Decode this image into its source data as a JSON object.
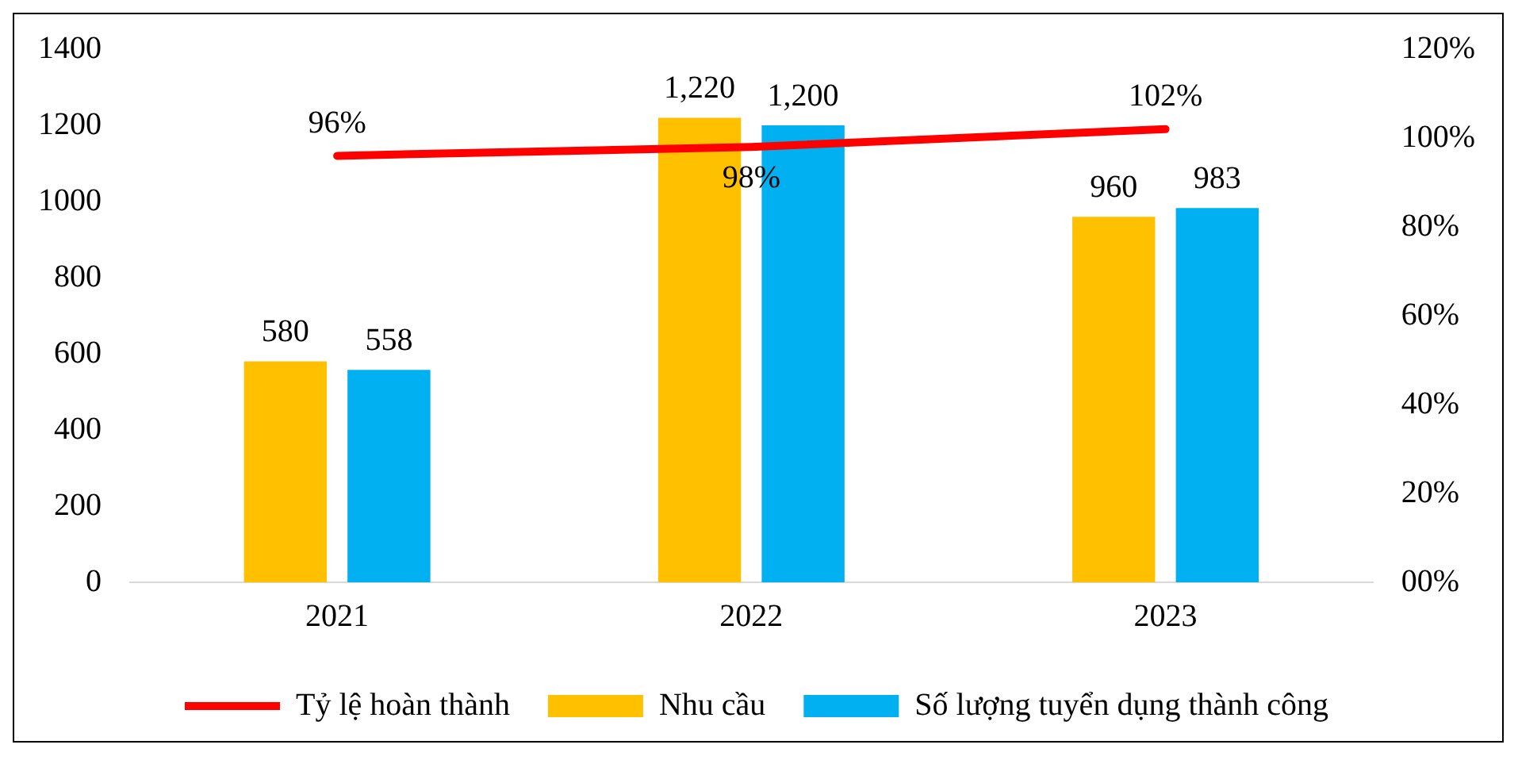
{
  "chart_data": {
    "type": "bar",
    "categories": [
      "2021",
      "2022",
      "2023"
    ],
    "series": [
      {
        "name": "Nhu cầu",
        "color": "#ffc000",
        "values": [
          580,
          1220,
          960
        ],
        "value_labels": [
          "580",
          "1,220",
          "960"
        ]
      },
      {
        "name": "Số lượng tuyển dụng thành công",
        "color": "#00b0f0",
        "values": [
          558,
          1200,
          983
        ],
        "value_labels": [
          "558",
          "1,200",
          "983"
        ]
      },
      {
        "name": "Tỷ lệ hoàn thành",
        "type": "line",
        "axis": "y2",
        "color": "#ff0000",
        "values": [
          96,
          98,
          102
        ],
        "value_labels": [
          "96%",
          "98%",
          "102%"
        ]
      }
    ],
    "ylim": [
      0,
      1400
    ],
    "yticks": [
      0,
      200,
      400,
      600,
      800,
      1000,
      1200,
      1400
    ],
    "y2lim": [
      0,
      120
    ],
    "y2ticks": [
      {
        "value": 0,
        "label": "00%"
      },
      {
        "value": 20,
        "label": "20%"
      },
      {
        "value": 40,
        "label": "40%"
      },
      {
        "value": 60,
        "label": "60%"
      },
      {
        "value": 80,
        "label": "80%"
      },
      {
        "value": 100,
        "label": "100%"
      },
      {
        "value": 120,
        "label": "120%"
      }
    ],
    "grid": false,
    "legend": "bottom",
    "marker": "none"
  }
}
